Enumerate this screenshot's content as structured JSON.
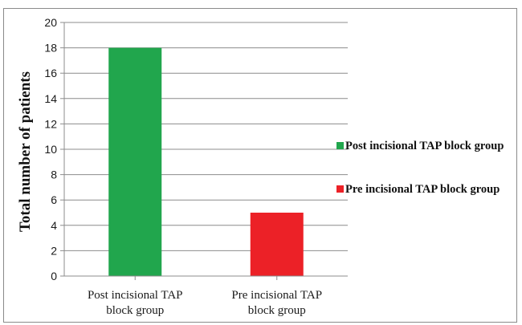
{
  "chart_data": {
    "type": "bar",
    "categories": [
      [
        "Post incisional TAP",
        "block group"
      ],
      [
        "Pre incisional TAP",
        "block group"
      ]
    ],
    "values": [
      18,
      5
    ],
    "bar_colors": [
      "#21a64d",
      "#ec2127"
    ],
    "xlabel": "",
    "ylabel": "Total number of patients",
    "ylim": [
      0,
      20
    ],
    "ytick_step": 2,
    "yticks": [
      "0",
      "2",
      "4",
      "6",
      "8",
      "10",
      "12",
      "14",
      "16",
      "18",
      "20"
    ],
    "grid": true,
    "legend_position": "right",
    "legend": [
      {
        "label": "Post incisional TAP block group",
        "color": "#21a64d"
      },
      {
        "label": "Pre incisional TAP block group",
        "color": "#ec2127"
      }
    ]
  }
}
